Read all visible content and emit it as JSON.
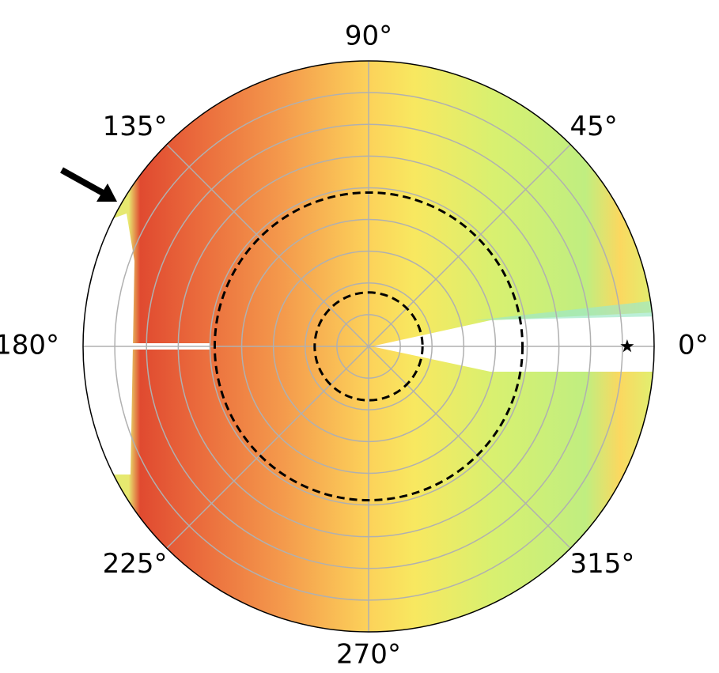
{
  "chart_data": {
    "type": "polar",
    "rlim": [
      0,
      9
    ],
    "rticks": [
      1,
      2,
      3,
      4,
      5,
      6,
      7,
      8
    ],
    "grid": true,
    "grid_color": "#b0b0b0",
    "thetaticks": [
      {
        "value": 0,
        "label": "0°"
      },
      {
        "value": 45,
        "label": "45°"
      },
      {
        "value": 90,
        "label": "90°"
      },
      {
        "value": 135,
        "label": "135°"
      },
      {
        "value": 180,
        "label": "180°"
      },
      {
        "value": 225,
        "label": "225°"
      },
      {
        "value": 270,
        "label": "270°"
      },
      {
        "value": 315,
        "label": "315°"
      }
    ],
    "circles": [
      {
        "r": 1.7,
        "style": "dashed",
        "color": "#000000"
      },
      {
        "r": 4.85,
        "style": "dashed",
        "color": "#000000"
      }
    ],
    "marker": {
      "theta": 0,
      "r": 8.15,
      "symbol": "star",
      "color": "#000000"
    }
  }
}
